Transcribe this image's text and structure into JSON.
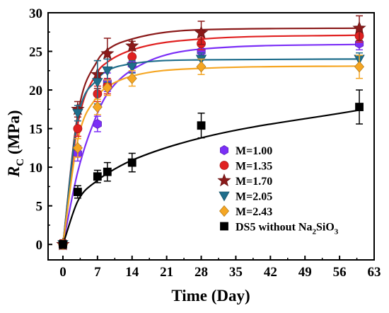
{
  "chart_data": {
    "type": "scatter",
    "xlabel": "Time (Day)",
    "ylabel_main": "R",
    "ylabel_sub": "C",
    "ylabel_unit": " (MPa)",
    "xlim": [
      -3,
      63
    ],
    "ylim": [
      -2,
      30
    ],
    "x_ticks": [
      0,
      7,
      14,
      21,
      28,
      35,
      42,
      49,
      56,
      63
    ],
    "y_ticks": [
      0,
      5,
      10,
      15,
      20,
      25,
      30
    ],
    "legend_position": "bottom-right",
    "x": [
      0,
      3,
      7,
      9,
      14,
      28,
      60
    ],
    "series": [
      {
        "name": "M=1.00",
        "marker": "hexagon",
        "color": "#7B2FF7",
        "values": [
          0,
          11.8,
          15.6,
          21.0,
          23.3,
          25.0,
          26.0
        ],
        "errors": [
          0.5,
          1.0,
          1.0,
          1.2,
          1.0,
          0.8,
          0.8
        ],
        "fit": [
          0,
          9.4,
          17.0,
          19.5,
          22.6,
          25.3,
          25.9
        ]
      },
      {
        "name": "M=1.35",
        "marker": "circle",
        "color": "#E02020",
        "values": [
          0,
          15.0,
          19.5,
          20.5,
          24.3,
          26.0,
          27.0
        ],
        "errors": [
          0.5,
          1.0,
          1.0,
          1.0,
          0.8,
          0.8,
          0.8
        ],
        "fit": [
          0,
          15.5,
          22.3,
          23.6,
          25.2,
          26.6,
          27.1
        ]
      },
      {
        "name": "M=1.70",
        "marker": "star",
        "color": "#8B1A1A",
        "values": [
          0,
          17.5,
          22.0,
          24.7,
          25.7,
          27.4,
          28.0
        ],
        "errors": [
          0.6,
          1.0,
          1.8,
          2.0,
          0.6,
          1.5,
          1.6
        ],
        "fit": [
          0,
          16.8,
          23.8,
          25.2,
          26.6,
          27.8,
          28.0
        ]
      },
      {
        "name": "M=2.05",
        "marker": "triangle-down",
        "color": "#1F6E8C",
        "values": [
          0,
          17.0,
          21.0,
          22.5,
          23.0,
          24.0,
          24.0
        ],
        "errors": [
          0.5,
          1.0,
          2.8,
          1.5,
          0.8,
          0.8,
          0.8
        ],
        "fit": [
          0,
          16.2,
          21.4,
          22.5,
          23.4,
          23.9,
          24.0
        ]
      },
      {
        "name": "M=2.43",
        "marker": "diamond",
        "color": "#F5A623",
        "values": [
          0,
          12.5,
          17.8,
          20.3,
          21.5,
          23.0,
          23.0
        ],
        "errors": [
          0.5,
          1.2,
          1.0,
          1.0,
          1.0,
          1.0,
          1.5
        ],
        "fit": [
          0,
          13.5,
          19.2,
          20.4,
          21.8,
          22.8,
          23.1
        ]
      },
      {
        "name": "DS5 without Na",
        "name_sub1": "2",
        "name_mid": "SiO",
        "name_sub2": "3",
        "marker": "square",
        "color": "#000000",
        "values": [
          0,
          6.8,
          8.8,
          9.4,
          10.6,
          15.4,
          17.8
        ],
        "errors": [
          0.5,
          0.8,
          0.8,
          1.2,
          1.2,
          1.6,
          2.2
        ],
        "fit": [
          0,
          5.6,
          8.3,
          9.2,
          10.9,
          13.8,
          17.4
        ]
      }
    ]
  }
}
